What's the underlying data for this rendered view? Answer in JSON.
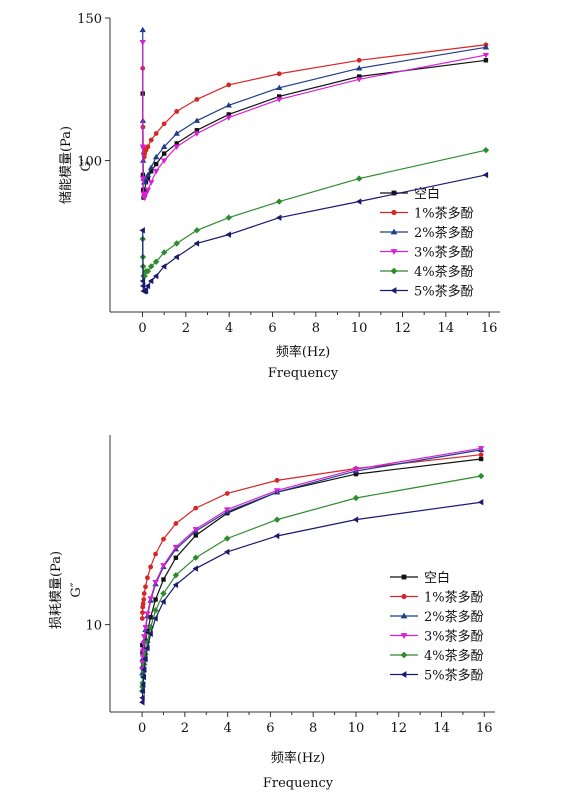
{
  "chart_data": [
    {
      "type": "line",
      "ylabel": "储能模量(Pa)",
      "ylabel2": "G′",
      "xlabel": "频率(Hz)",
      "xlabel2": "Frequency",
      "y_scale": "log",
      "xlim": [
        -1.5,
        16.5
      ],
      "ylim": [
        65,
        150
      ],
      "x_ticks": [
        0,
        2,
        4,
        6,
        8,
        10,
        12,
        14,
        16
      ],
      "y_ticks": [
        100,
        150
      ],
      "x": [
        0.01,
        0.02,
        0.03,
        0.05,
        0.08,
        0.1,
        0.16,
        0.25,
        0.4,
        0.63,
        1.0,
        1.58,
        2.51,
        3.98,
        6.31,
        10.0,
        15.85
      ],
      "series": [
        {
          "name": "空白",
          "color": "#111111",
          "marker": "square",
          "values": [
            121,
            96,
            92,
            90,
            91,
            92,
            94,
            95,
            97,
            99,
            102,
            105,
            109,
            114,
            120,
            127,
            133
          ]
        },
        {
          "name": "1%茶多酚",
          "color": "#d62728",
          "marker": "circle",
          "values": [
            130,
            110,
            104,
            102,
            101,
            102,
            103,
            104,
            106,
            108,
            111,
            115,
            119,
            124,
            128,
            133,
            139
          ]
        },
        {
          "name": "2%茶多酚",
          "color": "#1f3c88",
          "marker": "triangle-up",
          "values": [
            145,
            112,
            100,
            95,
            94,
            94,
            95,
            96,
            98,
            101,
            104,
            108,
            112,
            117,
            123,
            130,
            138
          ]
        },
        {
          "name": "3%茶多酚",
          "color": "#d61fd6",
          "marker": "triangle-down",
          "values": [
            140,
            104,
            95,
            91,
            90,
            90,
            91,
            92,
            94,
            97,
            100,
            104,
            108,
            113,
            119,
            126,
            135
          ]
        },
        {
          "name": "4%茶多酚",
          "color": "#2e8b2e",
          "marker": "diamond",
          "values": [
            80,
            76,
            74,
            72,
            72,
            72,
            73,
            73,
            74,
            75,
            77,
            79,
            82,
            85,
            89,
            95,
            103
          ]
        },
        {
          "name": "5%茶多酚",
          "color": "#1a1a6e",
          "marker": "triangle-left",
          "values": [
            82,
            71,
            70,
            69,
            69,
            69,
            69,
            70,
            71,
            72,
            74,
            76,
            79,
            81,
            85,
            89,
            96
          ]
        }
      ]
    },
    {
      "type": "line",
      "ylabel": "损耗模量(Pa)",
      "ylabel2": "G″",
      "xlabel": "频率(Hz)",
      "xlabel2": "Frequency",
      "y_scale": "log",
      "xlim": [
        -1.5,
        16.5
      ],
      "ylim": [
        5,
        45
      ],
      "x_ticks": [
        0,
        2,
        4,
        6,
        8,
        10,
        12,
        14,
        16
      ],
      "y_ticks": [
        10
      ],
      "x": [
        0.01,
        0.02,
        0.03,
        0.05,
        0.08,
        0.1,
        0.16,
        0.25,
        0.4,
        0.63,
        1.0,
        1.58,
        2.51,
        3.98,
        6.31,
        10.0,
        15.85
      ],
      "series": [
        {
          "name": "空白",
          "color": "#111111",
          "marker": "square",
          "values": [
            8.5,
            8.0,
            7.5,
            7.4,
            7.8,
            8.2,
            8.8,
            9.5,
            10.6,
            12.2,
            14.3,
            17.0,
            20.3,
            24.2,
            28.6,
            33.0,
            37.2
          ]
        },
        {
          "name": "1%茶多酚",
          "color": "#d62728",
          "marker": "circle",
          "values": [
            10.5,
            11.0,
            11.5,
            11.8,
            12.2,
            12.8,
            13.5,
            14.5,
            15.8,
            17.5,
            19.7,
            22.3,
            25.2,
            28.3,
            31.4,
            34.5,
            38.5
          ]
        },
        {
          "name": "2%茶多酚",
          "color": "#1f3c88",
          "marker": "triangle-up",
          "values": [
            6.8,
            7.2,
            7.6,
            7.9,
            8.3,
            8.8,
            9.6,
            10.7,
            12.1,
            13.8,
            15.8,
            18.2,
            21.0,
            24.5,
            28.6,
            33.8,
            40.0
          ]
        },
        {
          "name": "3%茶多酚",
          "color": "#d61fd6",
          "marker": "triangle-down",
          "values": [
            7.0,
            7.4,
            7.8,
            8.1,
            8.6,
            9.1,
            9.8,
            10.9,
            12.3,
            14.0,
            16.0,
            18.5,
            21.3,
            24.9,
            29.0,
            34.3,
            40.5
          ]
        },
        {
          "name": "4%茶多酚",
          "color": "#2e8b2e",
          "marker": "diamond",
          "values": [
            5.9,
            6.1,
            6.3,
            6.6,
            6.9,
            7.3,
            7.9,
            8.7,
            9.8,
            11.2,
            12.8,
            14.8,
            17.0,
            19.8,
            23.0,
            27.3,
            32.5
          ]
        },
        {
          "name": "5%茶多酚",
          "color": "#1a1a6e",
          "marker": "triangle-left",
          "values": [
            5.4,
            5.6,
            5.9,
            6.2,
            6.6,
            7.0,
            7.6,
            8.3,
            9.3,
            10.5,
            12.0,
            13.7,
            15.6,
            17.8,
            20.2,
            23.0,
            26.4
          ]
        }
      ]
    }
  ]
}
